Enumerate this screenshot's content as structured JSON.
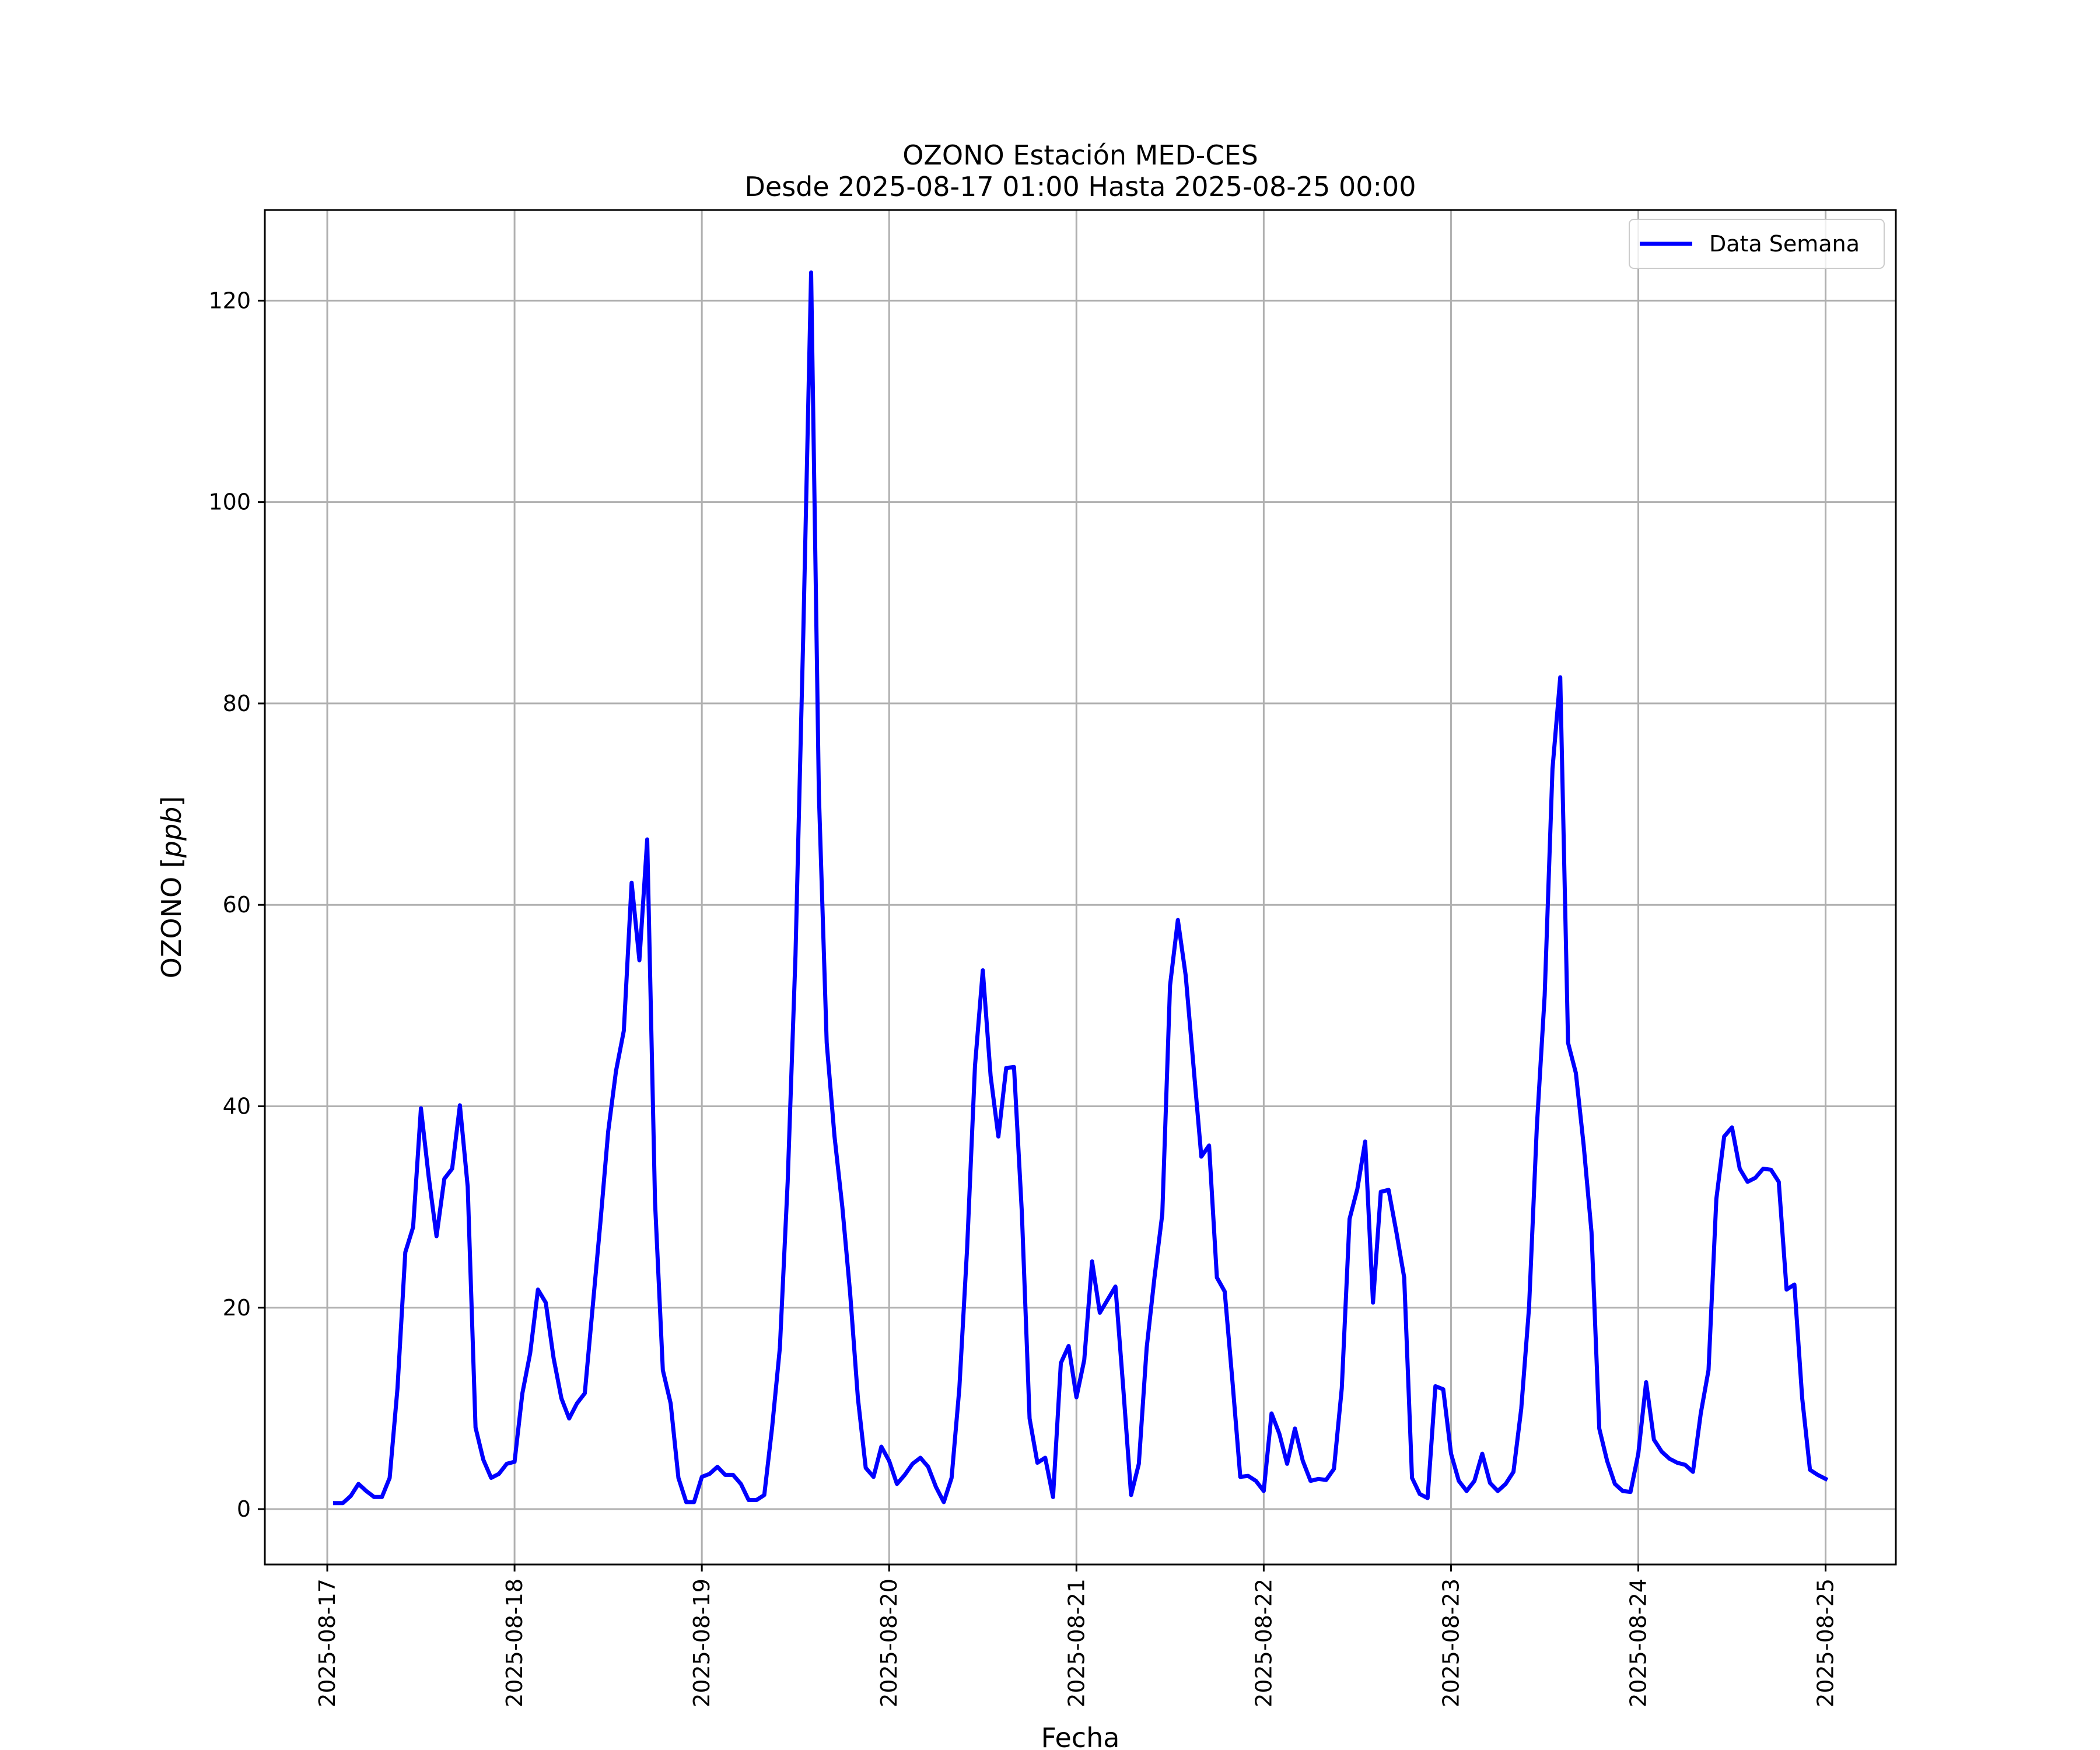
{
  "chart_data": {
    "type": "line",
    "title": "OZONO Estación MED-CES",
    "subtitle": "Desde 2025-08-17 01:00 Hasta 2025-08-25 00:00",
    "xlabel": "Fecha",
    "ylabel": "OZONO [ppb]",
    "ylabel_text": "OZONO [",
    "ylabel_unit": "ppb",
    "ylabel_close": "]",
    "xlim": [
      "2025-08-16 16:00",
      "2025-08-25 09:00"
    ],
    "ylim": [
      -5.5,
      129
    ],
    "grid": true,
    "legend_position": "top-right",
    "x_ticks": [
      "2025-08-17",
      "2025-08-18",
      "2025-08-19",
      "2025-08-20",
      "2025-08-21",
      "2025-08-22",
      "2025-08-23",
      "2025-08-24",
      "2025-08-25"
    ],
    "y_ticks": [
      0,
      20,
      40,
      60,
      80,
      100,
      120
    ],
    "x_start": "2025-08-17 01:00",
    "x_step_hours": 1,
    "series": [
      {
        "name": "Data Semana",
        "color": "#0000ff",
        "values": [
          0.6,
          0.6,
          1.3,
          2.5,
          1.8,
          1.2,
          1.2,
          3.1,
          12.0,
          25.5,
          28.0,
          39.8,
          33.0,
          27.1,
          32.8,
          33.8,
          40.1,
          32.0,
          8.1,
          4.9,
          3.1,
          3.5,
          4.5,
          4.7,
          11.5,
          15.5,
          21.8,
          20.5,
          15.0,
          11.0,
          9.0,
          10.5,
          11.5,
          20.0,
          28.5,
          37.5,
          43.5,
          47.5,
          62.2,
          54.5,
          66.5,
          30.5,
          13.8,
          10.5,
          3.1,
          0.7,
          0.7,
          3.2,
          3.5,
          4.2,
          3.4,
          3.4,
          2.5,
          0.9,
          0.9,
          1.4,
          8.1,
          16.0,
          32.5,
          55.0,
          87.0,
          122.8,
          71.0,
          46.3,
          37.0,
          30.0,
          21.5,
          11.0,
          4.1,
          3.2,
          6.2,
          4.8,
          2.5,
          3.4,
          4.5,
          5.1,
          4.2,
          2.2,
          0.7,
          3.1,
          12.0,
          26.0,
          44.0,
          53.5,
          43.0,
          37.0,
          43.8,
          43.9,
          29.5,
          9.0,
          4.6,
          5.1,
          1.2,
          14.5,
          16.2,
          11.1,
          14.8,
          24.6,
          19.5,
          20.8,
          22.1,
          12.0,
          1.4,
          4.5,
          16.0,
          23.0,
          29.3,
          52.0,
          58.5,
          53.0,
          44.0,
          35.0,
          36.1,
          23.0,
          21.6,
          12.6,
          3.2,
          3.3,
          2.8,
          1.8,
          9.5,
          7.5,
          4.5,
          8.0,
          4.8,
          2.8,
          3.0,
          2.9,
          4.0,
          12.0,
          28.8,
          31.8,
          36.5,
          20.5,
          31.5,
          31.7,
          27.5,
          23.0,
          3.1,
          1.5,
          1.1,
          12.2,
          11.9,
          5.5,
          2.8,
          1.8,
          2.8,
          5.5,
          2.6,
          1.8,
          2.5,
          3.7,
          10.0,
          20.0,
          38.0,
          51.0,
          73.5,
          82.6,
          46.3,
          43.3,
          36.1,
          27.5,
          8.0,
          4.8,
          2.5,
          1.8,
          1.7,
          5.5,
          12.6,
          6.9,
          5.7,
          5.0,
          4.6,
          4.4,
          3.7,
          9.5,
          13.8,
          30.8,
          37.0,
          37.9,
          33.8,
          32.5,
          32.9,
          33.8,
          33.7,
          32.5,
          21.8,
          22.3,
          11.0,
          3.9,
          3.4,
          3.0
        ]
      }
    ]
  }
}
